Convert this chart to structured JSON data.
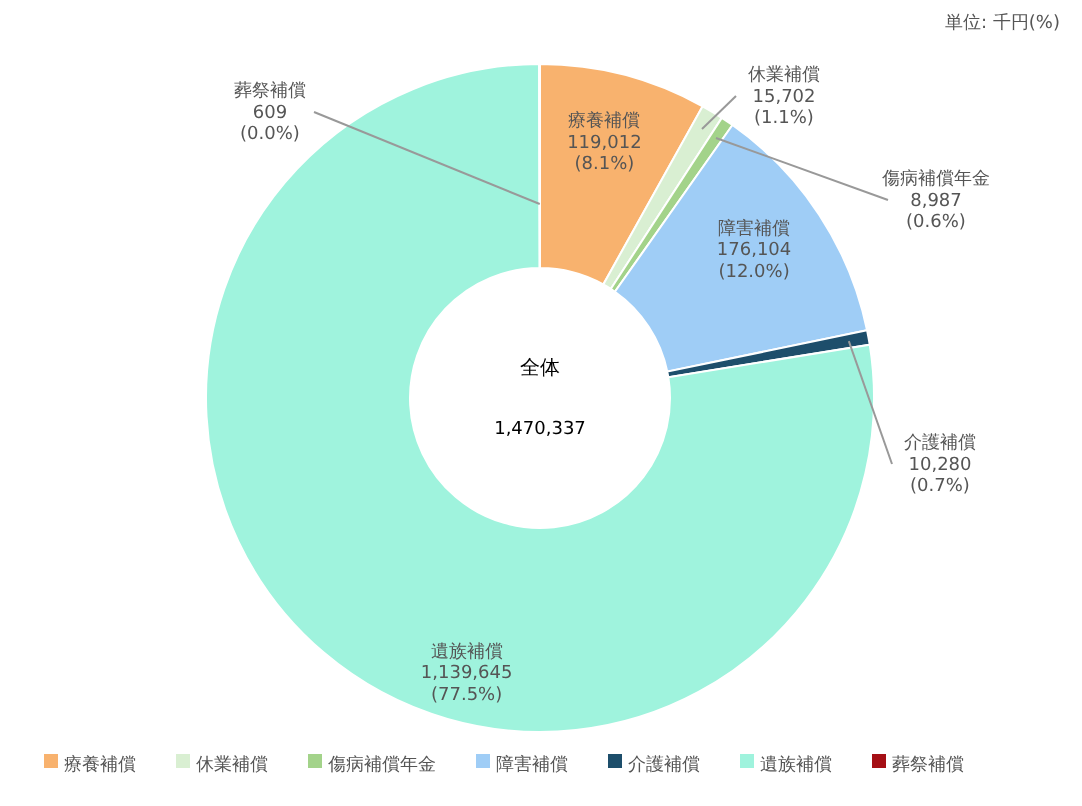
{
  "chart_data": {
    "type": "donut",
    "categories": [
      "療養補償",
      "休業補償",
      "傷病補償年金",
      "障害補償",
      "介護補償",
      "遺族補償",
      "葬祭補償"
    ],
    "values": [
      119012,
      15702,
      8987,
      176104,
      10280,
      1139645,
      609
    ],
    "colors": [
      "#f8b26e",
      "#d9efd2",
      "#a3d38a",
      "#9fcdf6",
      "#1d4e6b",
      "#9ff3dd",
      "#a50f15"
    ],
    "value_labels": [
      "119,012\n(8.1%)",
      "15,702\n(1.1%)",
      "8,987\n(0.6%)",
      "176,104\n(12.0%)",
      "10,280\n(0.7%)",
      "1,139,645\n(77.5%)",
      "609\n(0.0%)"
    ],
    "annotations": [
      "単位: 千円(%)",
      "全体",
      "1,470,337"
    ],
    "legend": "bottom"
  }
}
